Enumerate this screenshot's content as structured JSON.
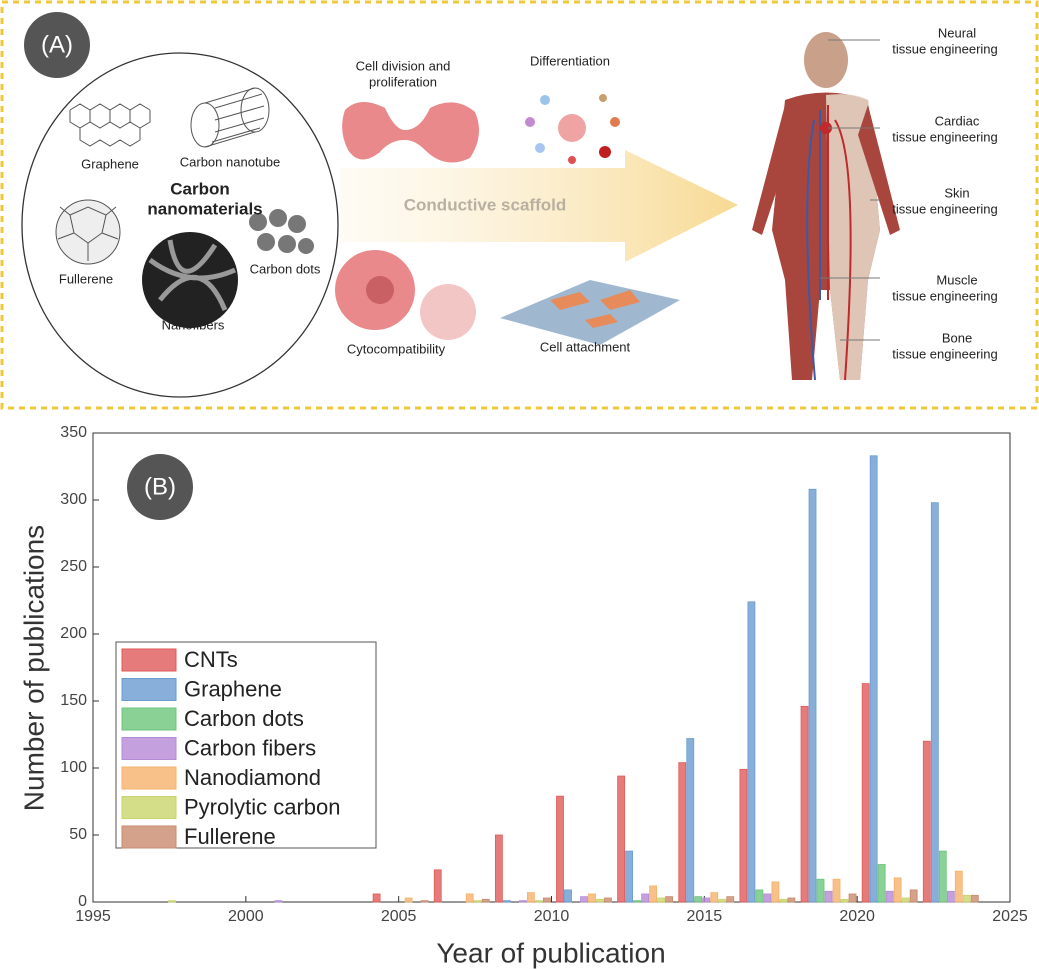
{
  "panel_a": {
    "label": "(A)",
    "materials": {
      "title_lines": [
        "Carbon",
        "nanomaterials"
      ],
      "items": [
        "Graphene",
        "Carbon nanotube",
        "Fullerene",
        "Nanofibers",
        "Carbon dots"
      ]
    },
    "arrow_label": "Conductive scaffold",
    "effects": {
      "division_lines": [
        "Cell division and",
        "proliferation"
      ],
      "differentiation": "Differentiation",
      "cytocompatibility": "Cytocompatibility",
      "attachment": "Cell attachment"
    },
    "applications": [
      {
        "name": "Neural",
        "detail": "tissue engineering"
      },
      {
        "name": "Cardiac",
        "detail": "tissue engineering"
      },
      {
        "name": "Skin",
        "detail": "tissue engineering"
      },
      {
        "name": "Muscle",
        "detail": "tissue engineering"
      },
      {
        "name": "Bone",
        "detail": "tissue engineering"
      }
    ]
  },
  "chart_data": {
    "type": "bar",
    "panel_label": "(B)",
    "xlabel": "Year of publication",
    "ylabel": "Number of publications",
    "x": [
      1996,
      1998,
      2000,
      2002,
      2004,
      2006,
      2008,
      2010,
      2012,
      2014,
      2016,
      2018,
      2020,
      2022
    ],
    "series": [
      {
        "name": "CNTs",
        "color": "#e05a5a",
        "values": [
          0,
          0,
          0,
          0,
          6,
          24,
          50,
          79,
          94,
          104,
          99,
          146,
          163,
          120
        ]
      },
      {
        "name": "Graphene",
        "color": "#6a9bd1",
        "values": [
          0,
          0,
          0,
          0,
          0,
          0,
          1,
          9,
          38,
          122,
          224,
          308,
          333,
          298
        ]
      },
      {
        "name": "Carbon dots",
        "color": "#6cc57a",
        "values": [
          0,
          0,
          0,
          0,
          0,
          0,
          0,
          0,
          1,
          4,
          9,
          17,
          28,
          38
        ]
      },
      {
        "name": "Carbon fibers",
        "color": "#b58ad6",
        "values": [
          0,
          0,
          1,
          0,
          0,
          0,
          1,
          4,
          6,
          3,
          6,
          8,
          8,
          8
        ]
      },
      {
        "name": "Nanodiamond",
        "color": "#f5b26b",
        "values": [
          0,
          0,
          0,
          0,
          3,
          6,
          7,
          6,
          12,
          7,
          15,
          17,
          18,
          23
        ]
      },
      {
        "name": "Pyrolytic carbon",
        "color": "#c9d46a",
        "values": [
          1,
          0,
          0,
          0,
          0,
          1,
          1,
          2,
          3,
          2,
          2,
          2,
          3,
          5
        ]
      },
      {
        "name": "Fullerene",
        "color": "#c98a6e",
        "values": [
          0,
          0,
          0,
          0,
          1,
          2,
          3,
          3,
          4,
          4,
          3,
          6,
          9,
          5
        ]
      }
    ],
    "xlim": [
      1995,
      2025
    ],
    "xticks": [
      1995,
      2000,
      2005,
      2010,
      2015,
      2020,
      2025
    ],
    "ylim": [
      0,
      350
    ],
    "yticks": [
      0,
      50,
      100,
      150,
      200,
      250,
      300,
      350
    ],
    "legend": "lower left"
  }
}
